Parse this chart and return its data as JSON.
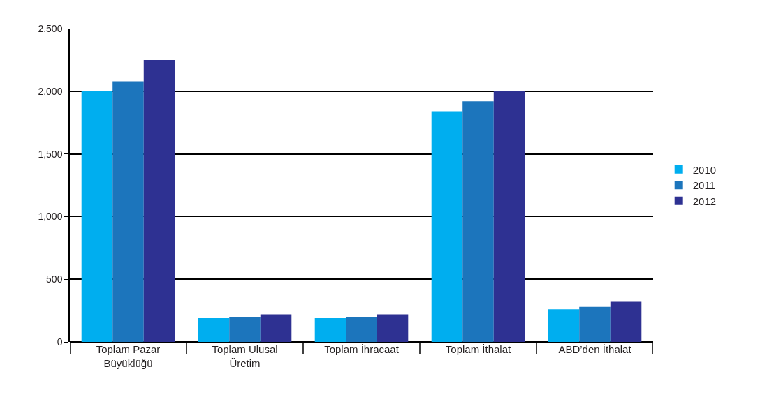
{
  "chart_data": {
    "type": "bar",
    "categories": [
      "Toplam Pazar Büyüklüğü",
      "Toplam Ulusal Üretim",
      "Toplam İhracaat",
      "Toplam İthalat",
      "ABD’den İthalat"
    ],
    "series": [
      {
        "name": "2010",
        "color": "#00aeef",
        "values": [
          2000,
          190,
          190,
          1840,
          260
        ]
      },
      {
        "name": "2011",
        "color": "#1c75bc",
        "values": [
          2080,
          200,
          200,
          1920,
          280
        ]
      },
      {
        "name": "2012",
        "color": "#2e3192",
        "values": [
          2250,
          220,
          220,
          2000,
          320
        ]
      }
    ],
    "ylim": [
      0,
      2500
    ],
    "yticks": [
      0,
      500,
      {
        "value": 1000,
        "label": "1,000"
      },
      {
        "value": 1500,
        "label": "1,500"
      },
      {
        "value": 2000,
        "label": "2,000"
      },
      {
        "value": 2500,
        "label": "2,500"
      }
    ],
    "grid": "y",
    "legend": "right"
  }
}
